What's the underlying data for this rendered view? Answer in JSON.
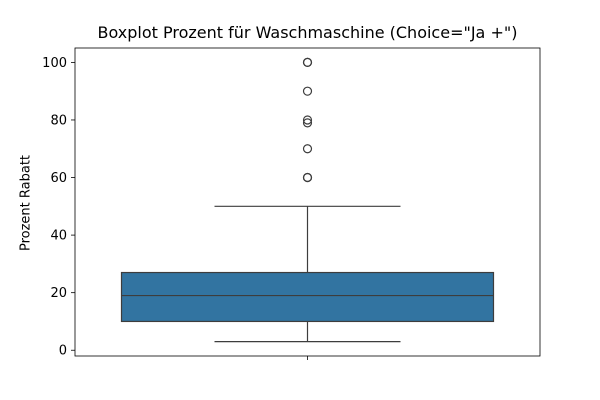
{
  "chart_data": {
    "type": "boxplot",
    "title": "Boxplot Prozent für Waschmaschine (Choice=\"Ja +\")",
    "xlabel": "",
    "ylabel": "Prozent Rabatt",
    "ylim": [
      -2,
      105
    ],
    "yticks": [
      0,
      20,
      40,
      60,
      80,
      100
    ],
    "grid": false,
    "series": [
      {
        "whisker_low": 3,
        "q1": 10,
        "median": 19,
        "q3": 27,
        "whisker_high": 50,
        "outliers": [
          60,
          60,
          70,
          79,
          80,
          90,
          100,
          100
        ],
        "color": "#3274a1"
      }
    ]
  }
}
